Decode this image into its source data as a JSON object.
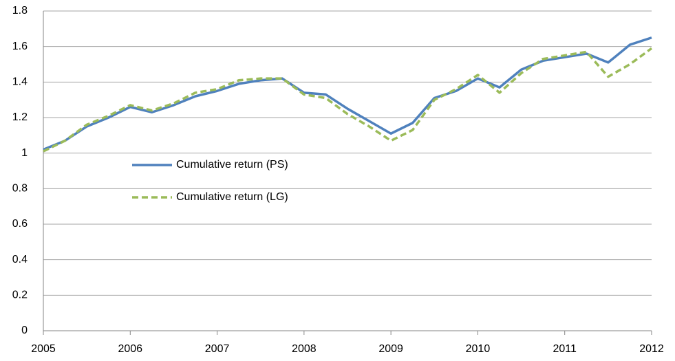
{
  "chart_data": {
    "type": "line",
    "x": [
      2005,
      2005.25,
      2005.5,
      2005.75,
      2006,
      2006.25,
      2006.5,
      2006.75,
      2007,
      2007.25,
      2007.5,
      2007.75,
      2008,
      2008.25,
      2008.5,
      2008.75,
      2009,
      2009.25,
      2009.5,
      2009.75,
      2010,
      2010.25,
      2010.5,
      2010.75,
      2011,
      2011.25,
      2011.5,
      2011.75,
      2012
    ],
    "series": [
      {
        "name": "Cumulative return (PS)",
        "color": "#4f81bd",
        "dash": false,
        "values": [
          1.02,
          1.07,
          1.15,
          1.2,
          1.26,
          1.23,
          1.27,
          1.32,
          1.35,
          1.39,
          1.41,
          1.42,
          1.34,
          1.33,
          1.25,
          1.18,
          1.11,
          1.17,
          1.31,
          1.35,
          1.42,
          1.37,
          1.47,
          1.52,
          1.54,
          1.56,
          1.51,
          1.61,
          1.65
        ]
      },
      {
        "name": "Cumulative return (LG)",
        "color": "#9bbb59",
        "dash": true,
        "values": [
          1.01,
          1.07,
          1.16,
          1.21,
          1.27,
          1.24,
          1.28,
          1.34,
          1.36,
          1.41,
          1.42,
          1.42,
          1.33,
          1.31,
          1.22,
          1.15,
          1.07,
          1.13,
          1.3,
          1.36,
          1.44,
          1.34,
          1.45,
          1.53,
          1.55,
          1.57,
          1.43,
          1.5,
          1.59
        ]
      }
    ],
    "xlim": [
      2005,
      2012
    ],
    "xticks": [
      2005,
      2006,
      2007,
      2008,
      2009,
      2010,
      2011,
      2012
    ],
    "ylim": [
      0,
      1.8
    ],
    "yticks": [
      0,
      0.2,
      0.4,
      0.6,
      0.8,
      1,
      1.2,
      1.4,
      1.6,
      1.8
    ],
    "grid": true,
    "legend_position": "center-left"
  }
}
